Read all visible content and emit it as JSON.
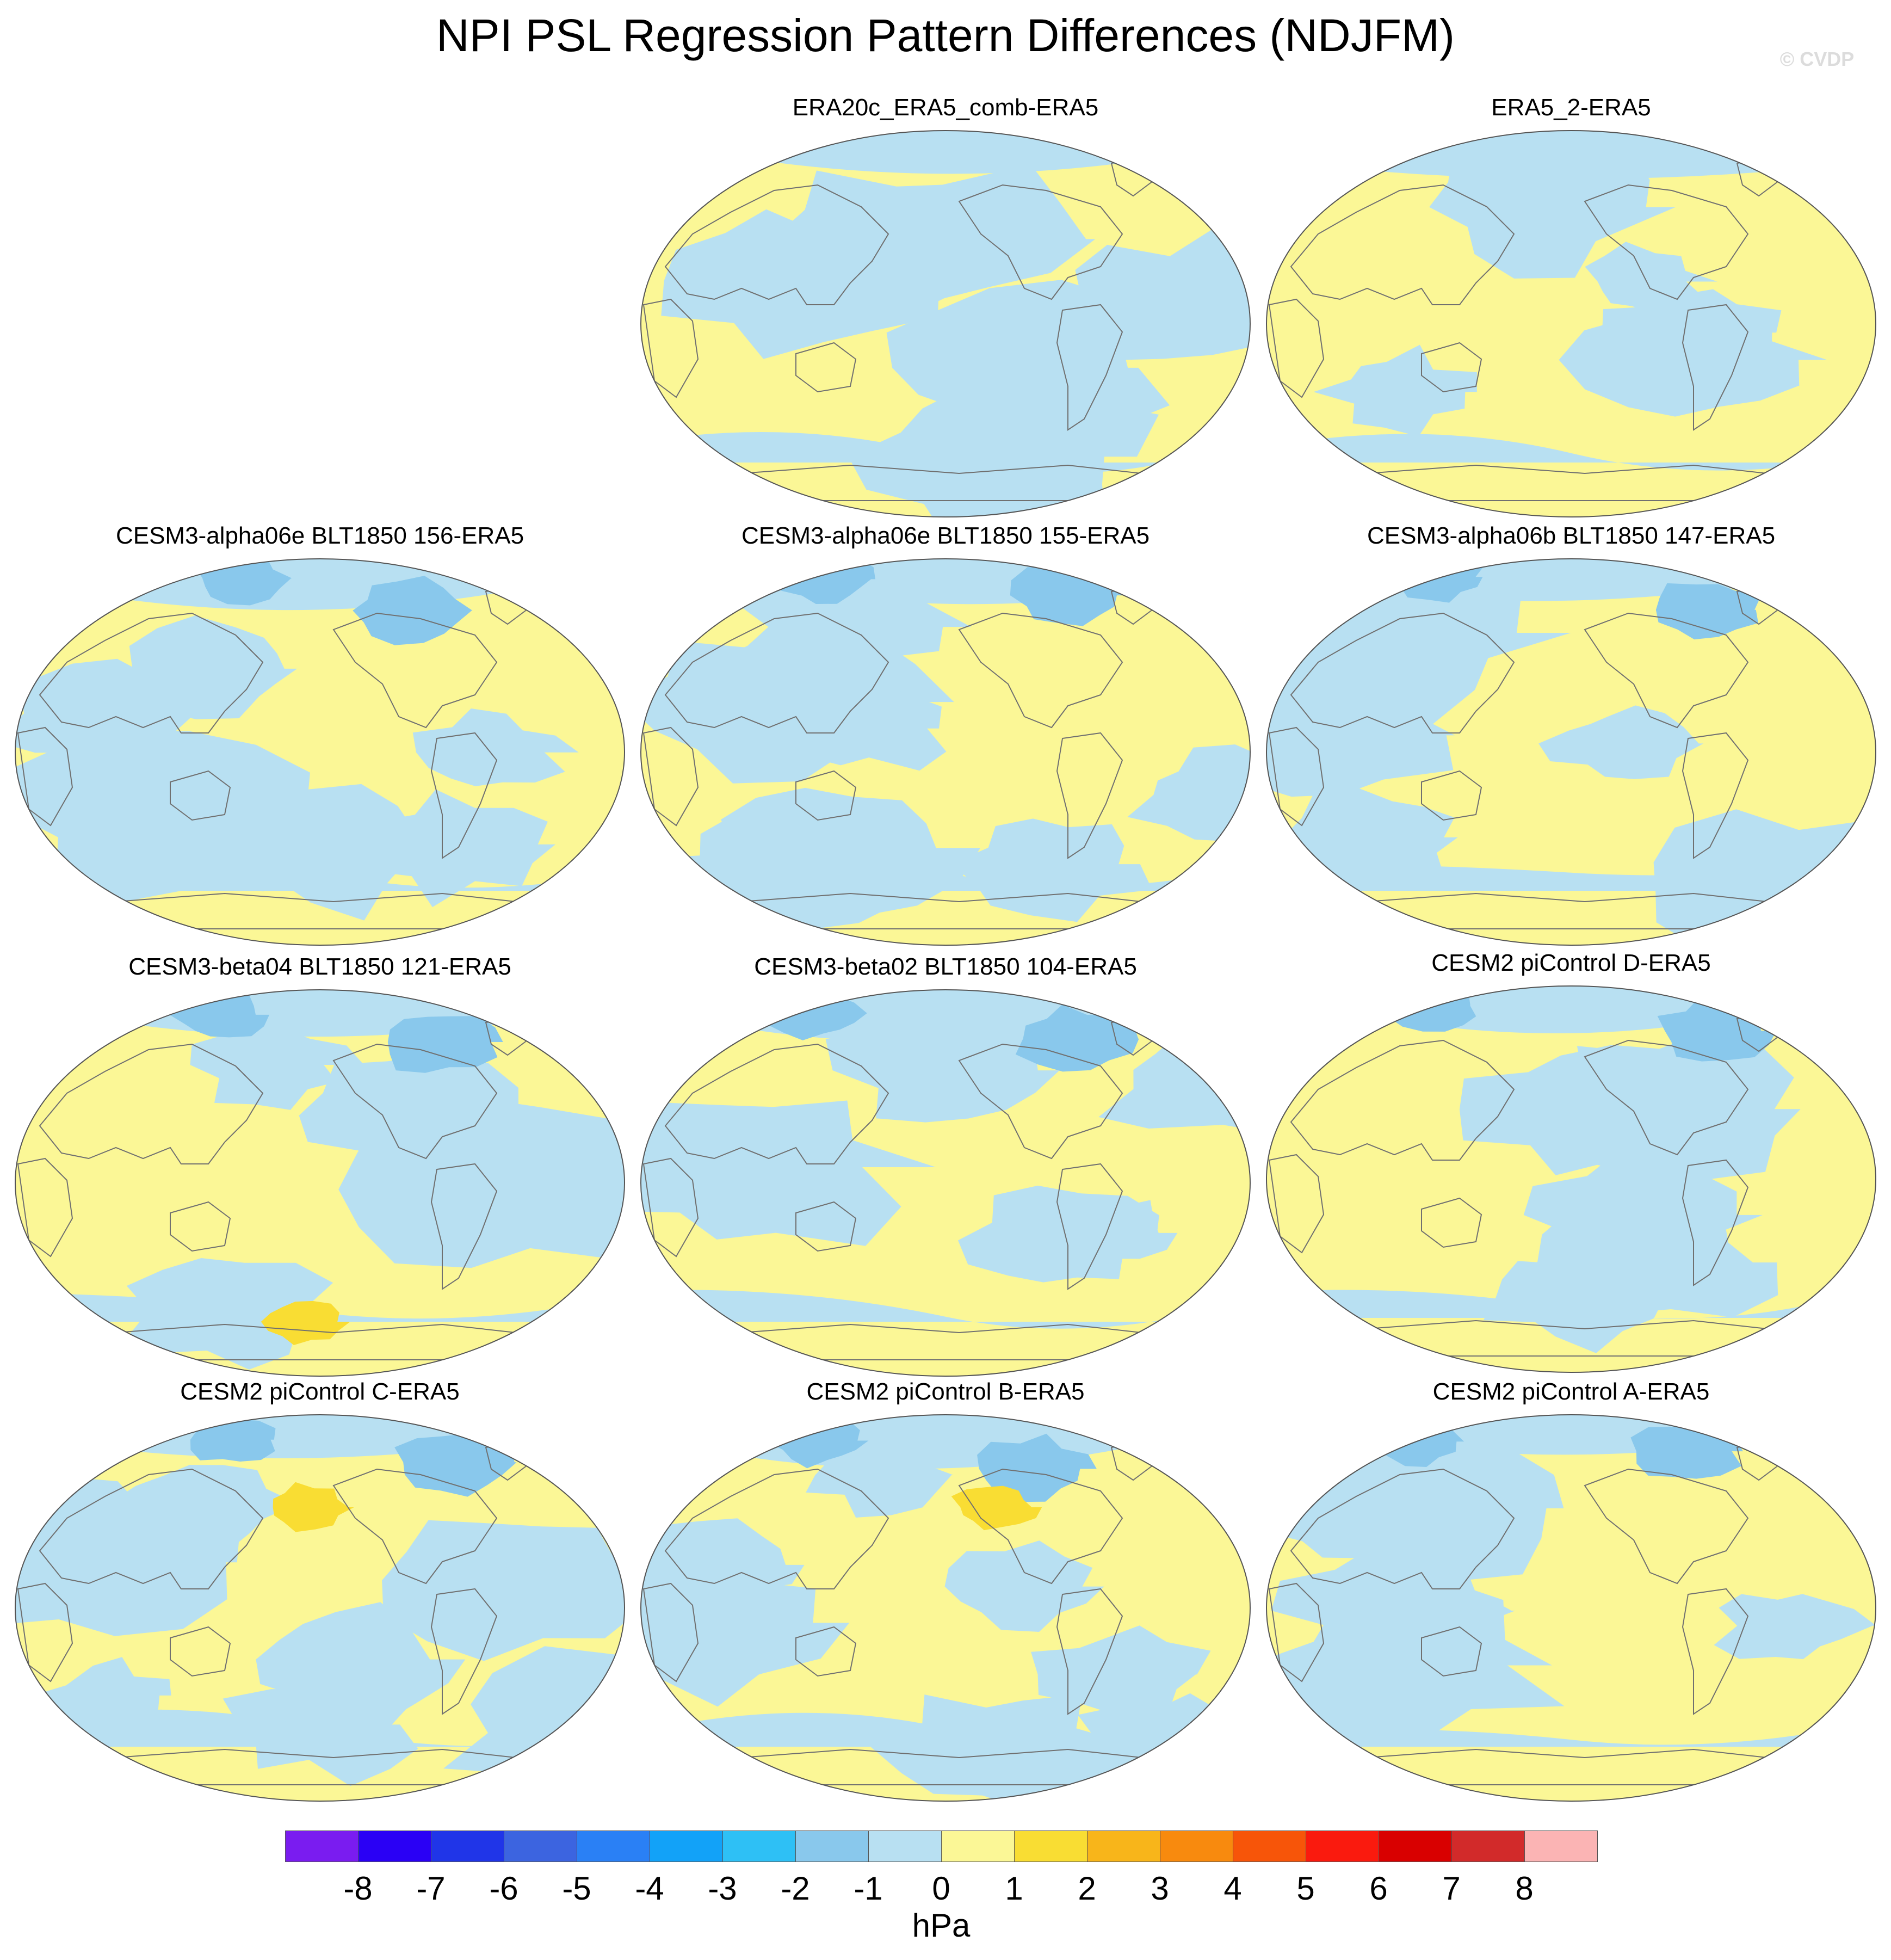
{
  "title": "NPI PSL Regression Pattern Differences (NDJFM)",
  "watermark": "© CVDP",
  "colors": {
    "positive": "#fbf796",
    "negative": "#b8e0f2",
    "strong_negative": "#89c8ec",
    "strong_positive": "#f9dd33",
    "coast": "#707070"
  },
  "panels": [
    {
      "title": "ERA20c_ERA5_comb-ERA5",
      "variant": 0
    },
    {
      "title": "ERA5_2-ERA5",
      "variant": 1
    },
    {
      "title": "CESM3-alpha06e BLT1850 156-ERA5",
      "variant": 2
    },
    {
      "title": "CESM3-alpha06e BLT1850 155-ERA5",
      "variant": 3
    },
    {
      "title": "CESM3-alpha06b BLT1850 147-ERA5",
      "variant": 4
    },
    {
      "title": "CESM3-beta04 BLT1850 121-ERA5",
      "variant": 5
    },
    {
      "title": "CESM3-beta02 BLT1850 104-ERA5",
      "variant": 6
    },
    {
      "title": "CESM2 piControl D-ERA5",
      "variant": 7
    },
    {
      "title": "CESM2 piControl C-ERA5",
      "variant": 8
    },
    {
      "title": "CESM2 piControl B-ERA5",
      "variant": 9
    },
    {
      "title": "CESM2 piControl A-ERA5",
      "variant": 10
    }
  ],
  "colorbar": {
    "unit": "hPa",
    "ticks": [
      "-8",
      "-7",
      "-6",
      "-5",
      "-4",
      "-3",
      "-2",
      "-1",
      "0",
      "1",
      "2",
      "3",
      "4",
      "5",
      "6",
      "7",
      "8"
    ],
    "colors": [
      "#7a1cf0",
      "#2a00f5",
      "#2035e8",
      "#3c64e0",
      "#2a80f5",
      "#12a2f8",
      "#2ec0f5",
      "#89c8ec",
      "#b8e0f2",
      "#fbf796",
      "#f9dd33",
      "#f8b51a",
      "#f88a0e",
      "#f75509",
      "#fa1a0e",
      "#d90000",
      "#d22a2a",
      "#fbb4b4"
    ]
  }
}
